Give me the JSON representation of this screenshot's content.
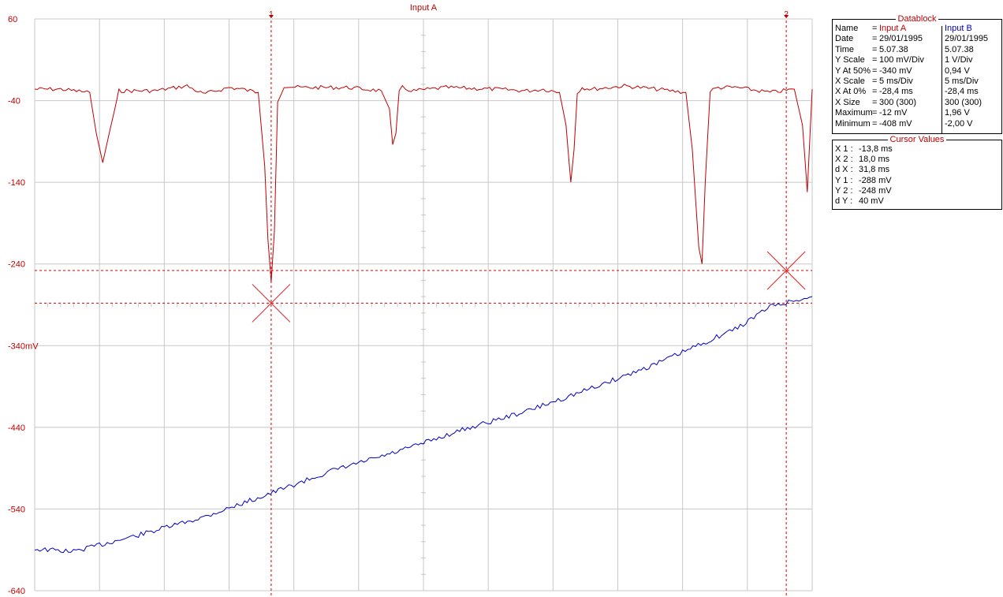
{
  "chart_data": {
    "type": "line",
    "title": "Input A",
    "ylabel": "",
    "yunit_label": "mV",
    "ylim": [
      -640,
      60
    ],
    "xlim": [
      -28.4,
      19.6
    ],
    "y_ticks": [
      60,
      -40,
      -140,
      -240,
      -340,
      -440,
      -540,
      -640
    ],
    "x_grid_divisions": 12,
    "grid": true,
    "series": [
      {
        "name": "Input A",
        "color": "#c00000",
        "x": [
          -28.4,
          -26.8,
          -25.0,
          -24.6,
          -24.2,
          -23.8,
          -23.2,
          -21.0,
          -19.0,
          -18.0,
          -16.4,
          -15.6,
          -14.6,
          -14.2,
          -14.0,
          -13.8,
          -13.6,
          -13.4,
          -13.0,
          -12.0,
          -9.0,
          -7.0,
          -6.5,
          -6.3,
          -6.1,
          -5.9,
          -5.7,
          -5.5,
          -5.0,
          -3.0,
          0.0,
          2.0,
          3.0,
          4.0,
          4.4,
          4.7,
          4.9,
          5.1,
          5.4,
          6.0,
          8.0,
          10.0,
          11.8,
          12.2,
          12.6,
          12.8,
          13.0,
          13.3,
          13.8,
          15.0,
          17.0,
          18.5,
          19.0,
          19.3,
          19.6
        ],
        "y": [
          -26,
          -26,
          -30,
          -80,
          -116,
          -80,
          -28,
          -28,
          -22,
          -32,
          -24,
          -26,
          -30,
          -120,
          -210,
          -262,
          -200,
          -40,
          -22,
          -24,
          -24,
          -28,
          -50,
          -96,
          -80,
          -30,
          -24,
          -26,
          -28,
          -24,
          -26,
          -28,
          -26,
          -30,
          -70,
          -140,
          -100,
          -30,
          -24,
          -26,
          -22,
          -26,
          -30,
          -100,
          -220,
          -240,
          -140,
          -28,
          -24,
          -24,
          -30,
          -26,
          -70,
          -152,
          -26
        ]
      },
      {
        "name": "Input B",
        "color": "#0000c0",
        "x": [
          -28.4,
          -26.0,
          -22.0,
          -18.0,
          -14.0,
          -10.0,
          -6.0,
          -2.0,
          2.0,
          6.0,
          10.0,
          12.4,
          15.0,
          17.0,
          19.6
        ],
        "y": [
          -2.05,
          -2.08,
          -1.88,
          -1.66,
          -1.38,
          -1.09,
          -0.86,
          -0.59,
          -0.36,
          -0.08,
          0.22,
          0.43,
          0.66,
          0.92,
          1.04
        ]
      }
    ],
    "cursors": {
      "x1": -13.8,
      "x2": 18.0,
      "y1": -288,
      "y2": -248,
      "x1_marker": "1",
      "x2_marker": "2"
    }
  },
  "datablock": {
    "title": "Datablock",
    "rows": [
      {
        "label": "Name",
        "eq": "=",
        "a": "Input A",
        "b": "Input B"
      },
      {
        "label": "Date",
        "eq": "=",
        "a": "29/01/1995",
        "b": "29/01/1995"
      },
      {
        "label": "Time",
        "eq": "=",
        "a": "5.07.38",
        "b": "5.07.38"
      },
      {
        "label": "Y Scale",
        "eq": "=",
        "a": "100    mV/Div",
        "b": "1     V/Div"
      },
      {
        "label": "Y At 50%",
        "eq": "=",
        "a": "-340    mV",
        "b": "0,94 V"
      },
      {
        "label": "X Scale",
        "eq": "=",
        "a": "5    ms/Div",
        "b": "5     ms/Div"
      },
      {
        "label": "X At 0%",
        "eq": "=",
        "a": "-28,4 ms",
        "b": "-28,4    ms"
      },
      {
        "label": "X Size",
        "eq": "=",
        "a": "300 (300)",
        "b": "300 (300)"
      },
      {
        "label": "Maximum",
        "eq": "=",
        "a": "-12    mV",
        "b": "1,96 V"
      },
      {
        "label": "Minimum",
        "eq": "=",
        "a": "-408    mV",
        "b": "-2,00 V"
      }
    ]
  },
  "cursor_values": {
    "title": "Cursor Values",
    "rows": [
      {
        "label": "X 1 :",
        "value": "-13,8 ms"
      },
      {
        "label": "X 2 :",
        "value": "18,0 ms"
      },
      {
        "label": "d X :",
        "value": "31,8 ms"
      },
      {
        "label": "Y 1 :",
        "value": "-288    mV"
      },
      {
        "label": "Y 2 :",
        "value": "-248    mV"
      },
      {
        "label": "d Y :",
        "value": "40    mV"
      }
    ]
  }
}
